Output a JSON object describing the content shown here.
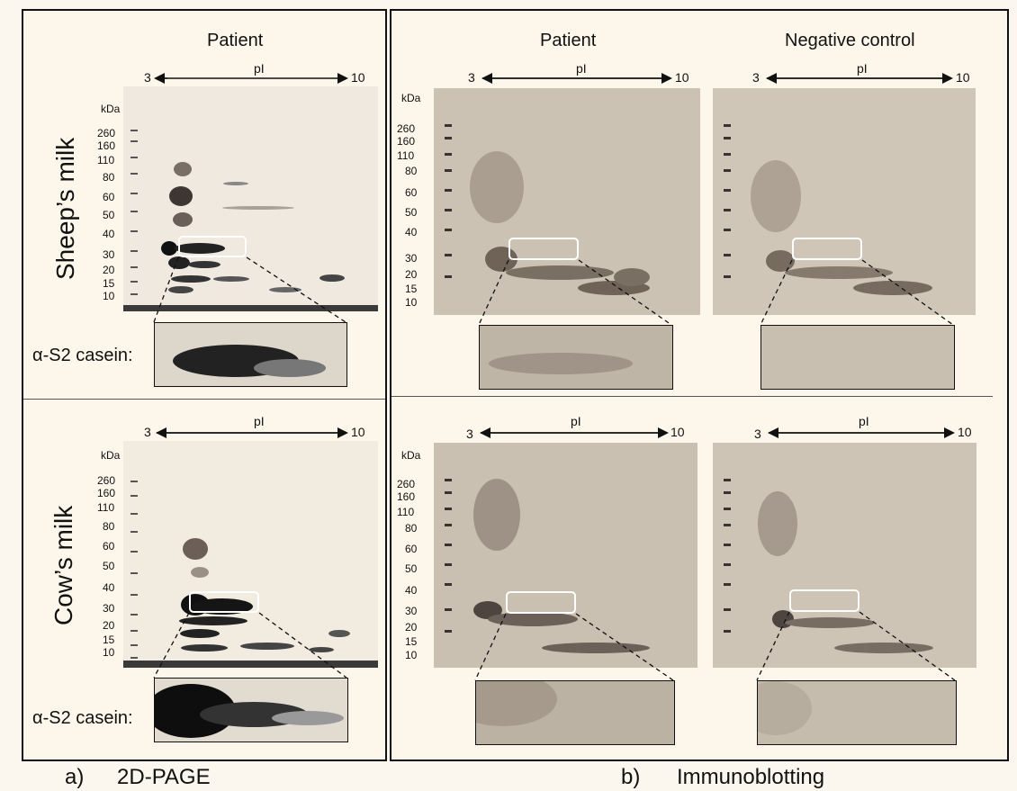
{
  "panel_a": {
    "header": "Patient",
    "ph_axis": {
      "label": "pI",
      "low": "3",
      "high": "10"
    },
    "rows": [
      {
        "row_label": "Sheep’s milk",
        "inset_label": "α-S2 casein:"
      },
      {
        "row_label": "Cow’s milk",
        "inset_label": "α-S2 casein:"
      }
    ],
    "mw_axis": {
      "unit": "kDa",
      "markers": [
        "260",
        "160",
        "110",
        "80",
        "60",
        "50",
        "40",
        "30",
        "20",
        "15",
        "10"
      ]
    },
    "caption_letter": "a)",
    "caption_title": "2D-PAGE"
  },
  "panel_b": {
    "headers": [
      "Patient",
      "Negative control"
    ],
    "ph_axis": {
      "label": "pI",
      "low": "3",
      "high": "10"
    },
    "mw_axis": {
      "unit": "kDa",
      "markers": [
        "260",
        "160",
        "110",
        "80",
        "60",
        "50",
        "40",
        "30",
        "20",
        "15",
        "10"
      ]
    },
    "caption_letter": "b)",
    "caption_title": "Immunoblotting"
  },
  "colors": {
    "gel_bg": "#efe9df",
    "blot_bg": "#cfc6b8",
    "spot_dark": "#1a1a1a",
    "highlight_box": "#ffffff",
    "panel_border": "#111111"
  }
}
